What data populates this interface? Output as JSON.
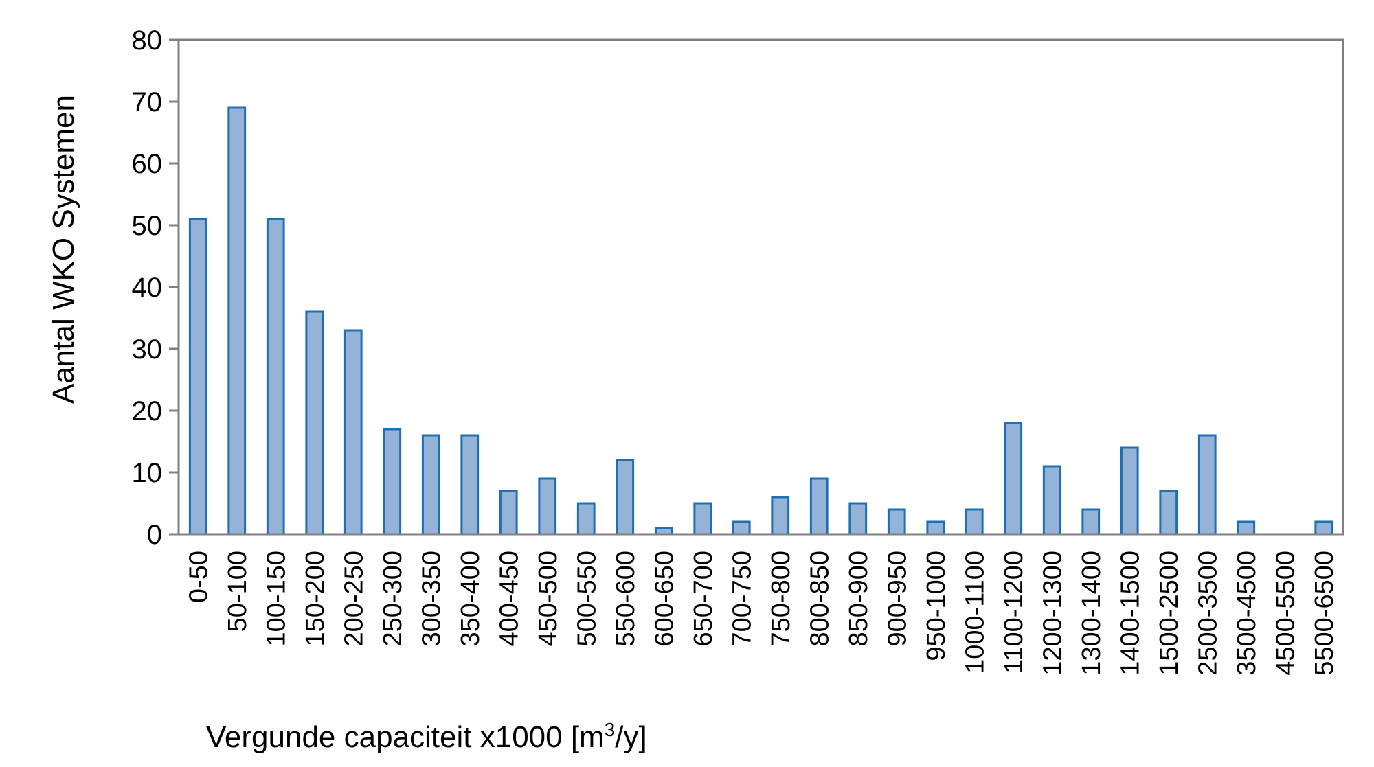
{
  "chart_data": {
    "type": "bar",
    "title": "",
    "ylabel": "Aantal WKO Systemen",
    "xlabel": {
      "main": "Vergunde capaciteit x1000 [m",
      "sup": "3",
      "tail": "/y]"
    },
    "ylim": [
      0,
      80
    ],
    "yticks": [
      0,
      10,
      20,
      30,
      40,
      50,
      60,
      70,
      80
    ],
    "grid": false,
    "legend": "none",
    "bar_fill": "#95b3d7",
    "bar_stroke": "#1f6fb4",
    "axis_color": "#808080",
    "categories": [
      "0-50",
      "50-100",
      "100-150",
      "150-200",
      "200-250",
      "250-300",
      "300-350",
      "350-400",
      "400-450",
      "450-500",
      "500-550",
      "550-600",
      "600-650",
      "650-700",
      "700-750",
      "750-800",
      "800-850",
      "850-900",
      "900-950",
      "950-1000",
      "1000-1100",
      "1100-1200",
      "1200-1300",
      "1300-1400",
      "1400-1500",
      "1500-2500",
      "2500-3500",
      "3500-4500",
      "4500-5500",
      "5500-6500"
    ],
    "values": [
      51,
      69,
      51,
      36,
      33,
      17,
      16,
      16,
      7,
      9,
      5,
      12,
      1,
      5,
      2,
      6,
      9,
      5,
      4,
      2,
      4,
      18,
      11,
      4,
      14,
      7,
      16,
      2,
      0,
      2
    ]
  }
}
